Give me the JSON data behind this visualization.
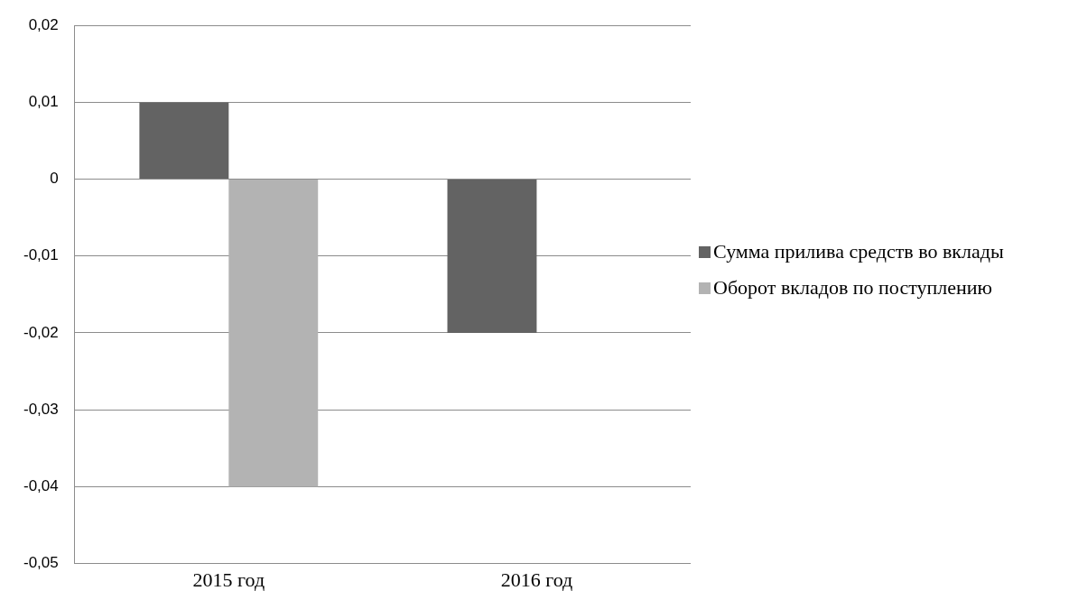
{
  "chart_data": {
    "type": "bar",
    "categories": [
      "2015 год",
      "2016 год"
    ],
    "series": [
      {
        "name": "Сумма прилива средств во вклады",
        "color": "#636363",
        "values": [
          0.01,
          -0.02
        ]
      },
      {
        "name": "Оборот вкладов по поступлению",
        "color": "#b3b3b3",
        "values": [
          -0.04,
          0
        ]
      }
    ],
    "ylim": [
      -0.05,
      0.02
    ],
    "yticks": [
      {
        "value": -0.05,
        "label": "-0,05"
      },
      {
        "value": -0.04,
        "label": "-0,04"
      },
      {
        "value": -0.03,
        "label": "-0,03"
      },
      {
        "value": -0.02,
        "label": "-0,02"
      },
      {
        "value": -0.01,
        "label": "-0,01"
      },
      {
        "value": 0,
        "label": "0"
      },
      {
        "value": 0.01,
        "label": "0,01"
      },
      {
        "value": 0.02,
        "label": "0,02"
      }
    ],
    "grid": "y",
    "legend": "right"
  }
}
